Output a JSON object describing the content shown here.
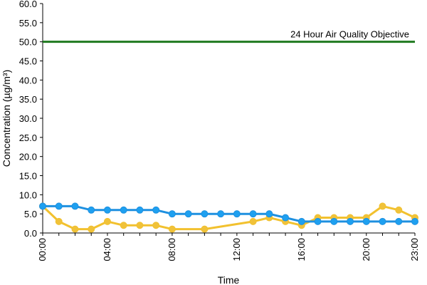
{
  "chart_data": {
    "type": "line",
    "xlabel": "Time",
    "ylabel": "Concentration (µg/m³)",
    "ylim": [
      0,
      60
    ],
    "yticks": [
      "0.0",
      "5.0",
      "10.0",
      "15.0",
      "20.0",
      "25.0",
      "30.0",
      "35.0",
      "40.0",
      "45.0",
      "50.0",
      "55.0",
      "60.0"
    ],
    "xlim": [
      0,
      23
    ],
    "x": [
      0,
      1,
      2,
      3,
      4,
      5,
      6,
      7,
      8,
      9,
      10,
      11,
      12,
      13,
      14,
      15,
      16,
      17,
      18,
      19,
      20,
      21,
      22,
      23
    ],
    "xticks": [
      {
        "value": 0,
        "label": "00:00"
      },
      {
        "value": 4,
        "label": "04:00"
      },
      {
        "value": 8,
        "label": "08:00"
      },
      {
        "value": 12,
        "label": "12:00"
      },
      {
        "value": 16,
        "label": "16:00"
      },
      {
        "value": 20,
        "label": "20:00"
      },
      {
        "value": 23,
        "label": "23:00"
      }
    ],
    "grid": false,
    "legend": "none",
    "series": [
      {
        "color": "#f2c12e",
        "marker_fill": "#f0c23a",
        "points": [
          {
            "x": 0,
            "y": 7
          },
          {
            "x": 1,
            "y": 3
          },
          {
            "x": 2,
            "y": 1
          },
          {
            "x": 3,
            "y": 1
          },
          {
            "x": 4,
            "y": 3
          },
          {
            "x": 5,
            "y": 2
          },
          {
            "x": 6,
            "y": 2
          },
          {
            "x": 7,
            "y": 2
          },
          {
            "x": 8,
            "y": 1
          },
          {
            "x": 10,
            "y": 1
          },
          {
            "x": 13,
            "y": 3
          },
          {
            "x": 14,
            "y": 4
          },
          {
            "x": 15,
            "y": 3
          },
          {
            "x": 16,
            "y": 2
          },
          {
            "x": 17,
            "y": 4
          },
          {
            "x": 18,
            "y": 4
          },
          {
            "x": 19,
            "y": 4
          },
          {
            "x": 20,
            "y": 4
          },
          {
            "x": 21,
            "y": 7
          },
          {
            "x": 22,
            "y": 6
          },
          {
            "x": 23,
            "y": 4
          }
        ]
      },
      {
        "color": "#1e90e0",
        "marker_fill": "#1ea0f0",
        "points": [
          {
            "x": 0,
            "y": 7
          },
          {
            "x": 1,
            "y": 7
          },
          {
            "x": 2,
            "y": 7
          },
          {
            "x": 3,
            "y": 6
          },
          {
            "x": 4,
            "y": 6
          },
          {
            "x": 5,
            "y": 6
          },
          {
            "x": 6,
            "y": 6
          },
          {
            "x": 7,
            "y": 6
          },
          {
            "x": 8,
            "y": 5
          },
          {
            "x": 9,
            "y": 5
          },
          {
            "x": 10,
            "y": 5
          },
          {
            "x": 11,
            "y": 5
          },
          {
            "x": 12,
            "y": 5
          },
          {
            "x": 13,
            "y": 5
          },
          {
            "x": 14,
            "y": 5
          },
          {
            "x": 15,
            "y": 4
          },
          {
            "x": 16,
            "y": 3
          },
          {
            "x": 17,
            "y": 3
          },
          {
            "x": 18,
            "y": 3
          },
          {
            "x": 19,
            "y": 3
          },
          {
            "x": 20,
            "y": 3
          },
          {
            "x": 21,
            "y": 3
          },
          {
            "x": 22,
            "y": 3
          },
          {
            "x": 23,
            "y": 3
          }
        ]
      }
    ],
    "reference_line": {
      "y": 50,
      "label": "24 Hour Air Quality Objective",
      "color": "#1f7a1f"
    }
  }
}
